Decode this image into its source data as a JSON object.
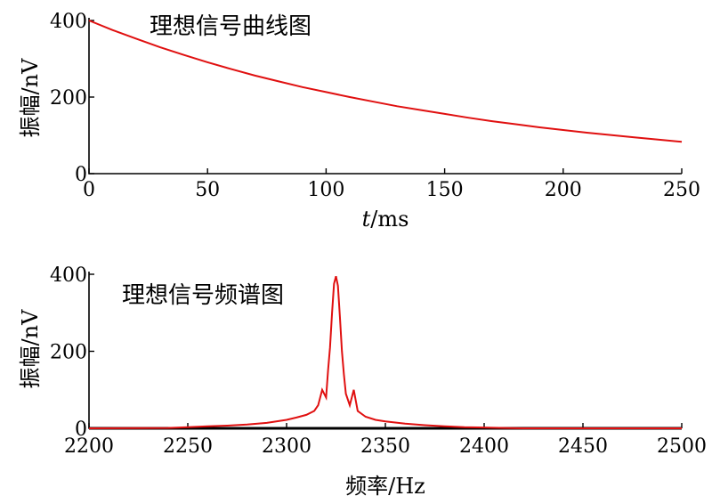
{
  "chart_data": [
    {
      "type": "line",
      "title": "理想信号曲线图",
      "ylabel": "振幅/nV",
      "xlabel_italic": "t",
      "xlabel_rest": "/ms",
      "xlim": [
        0,
        250
      ],
      "ylim": [
        0,
        400
      ],
      "xticks": [
        0,
        50,
        100,
        150,
        200,
        250
      ],
      "yticks": [
        0,
        200,
        400
      ],
      "series": [
        {
          "color": "#e01010",
          "x": [
            0,
            10,
            20,
            30,
            40,
            50,
            60,
            70,
            80,
            90,
            100,
            110,
            120,
            130,
            140,
            150,
            160,
            170,
            180,
            190,
            200,
            210,
            220,
            230,
            240,
            250
          ],
          "y": [
            400,
            375,
            352,
            330,
            310,
            291,
            273,
            256,
            241,
            226,
            213,
            200,
            188,
            176,
            166,
            156,
            146,
            137,
            129,
            121,
            114,
            107,
            101,
            95,
            89,
            83
          ]
        }
      ]
    },
    {
      "type": "line",
      "title": "理想信号频谱图",
      "ylabel": "振幅/nV",
      "xlabel": "频率/Hz",
      "xlim": [
        2200,
        2500
      ],
      "ylim": [
        0,
        400
      ],
      "xticks": [
        2200,
        2250,
        2300,
        2350,
        2400,
        2450,
        2500
      ],
      "yticks": [
        0,
        200,
        400
      ],
      "series": [
        {
          "color": "#e01010",
          "x": [
            2200,
            2240,
            2250,
            2260,
            2270,
            2280,
            2290,
            2300,
            2305,
            2310,
            2314,
            2316,
            2318,
            2320,
            2321,
            2322,
            2323,
            2324,
            2325,
            2326,
            2327,
            2328,
            2329,
            2330,
            2332,
            2334,
            2336,
            2340,
            2345,
            2350,
            2360,
            2370,
            2380,
            2390,
            2400,
            2410,
            2420,
            2500
          ],
          "y": [
            0,
            1,
            3,
            5,
            7,
            10,
            14,
            22,
            28,
            35,
            45,
            60,
            100,
            80,
            150,
            210,
            300,
            375,
            395,
            370,
            290,
            200,
            140,
            90,
            60,
            100,
            45,
            30,
            22,
            18,
            12,
            8,
            5,
            3,
            2,
            1,
            0,
            0
          ]
        }
      ]
    }
  ]
}
